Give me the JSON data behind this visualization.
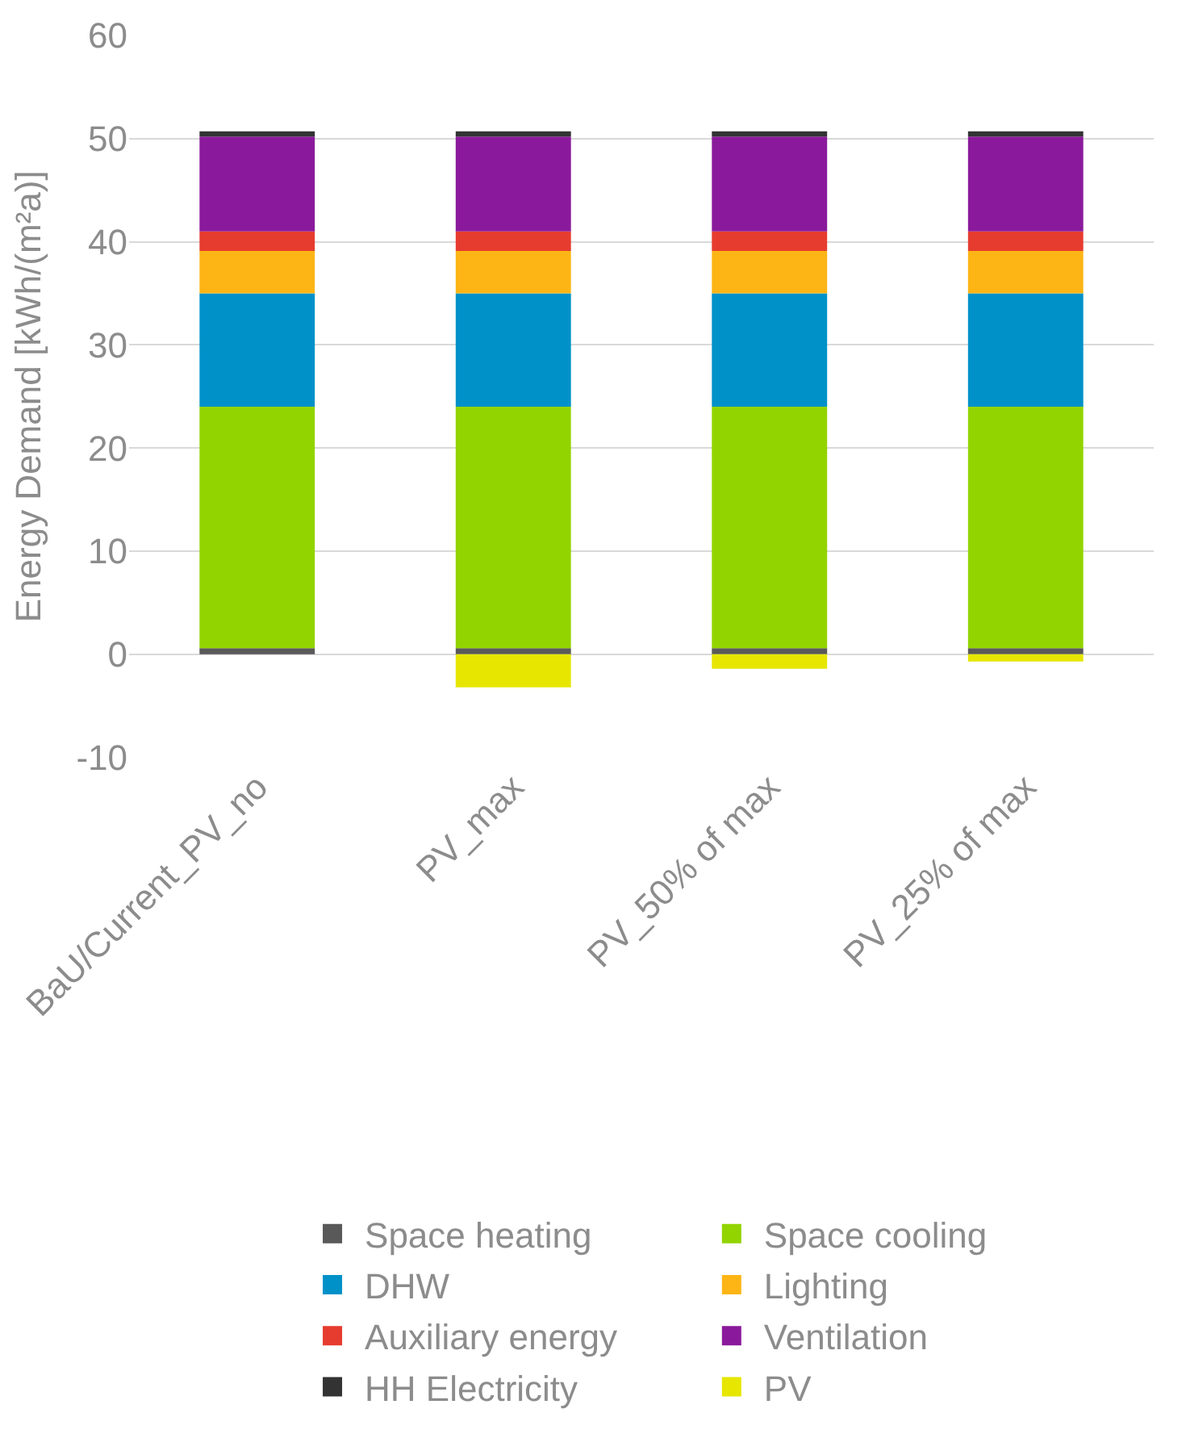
{
  "chart_data": {
    "type": "bar",
    "stacked": true,
    "ylabel": "Energy Demand [kWh/(m²a)]",
    "categories": [
      "BaU/Current_PV_no",
      "PV_max",
      "PV_50% of max",
      "PV_25% of max"
    ],
    "series": [
      {
        "name": "Space heating",
        "color": "#595959",
        "values": [
          0.6,
          0.6,
          0.6,
          0.6
        ]
      },
      {
        "name": "Space cooling",
        "color": "#92d400",
        "values": [
          23.4,
          23.4,
          23.4,
          23.4
        ]
      },
      {
        "name": "DHW",
        "color": "#0091c9",
        "values": [
          11,
          11,
          11,
          11
        ]
      },
      {
        "name": "Lighting",
        "color": "#fdb515",
        "values": [
          4.1,
          4.1,
          4.1,
          4.1
        ]
      },
      {
        "name": "Auxiliary energy",
        "color": "#e63c2f",
        "values": [
          1.9,
          1.9,
          1.9,
          1.9
        ]
      },
      {
        "name": "Ventilation",
        "color": "#8a1a9b",
        "values": [
          9.2,
          9.2,
          9.2,
          9.2
        ]
      },
      {
        "name": "HH Electricity",
        "color": "#333333",
        "values": [
          0.5,
          0.5,
          0.5,
          0.5
        ]
      },
      {
        "name": "PV",
        "color": "#e6e600",
        "values": [
          0,
          -3.2,
          -1.4,
          -0.7
        ]
      }
    ],
    "ylim": [
      -10,
      60
    ],
    "yticks": [
      -10,
      0,
      10,
      20,
      30,
      40,
      50,
      60
    ],
    "grid": "y",
    "legend": "bottom"
  }
}
